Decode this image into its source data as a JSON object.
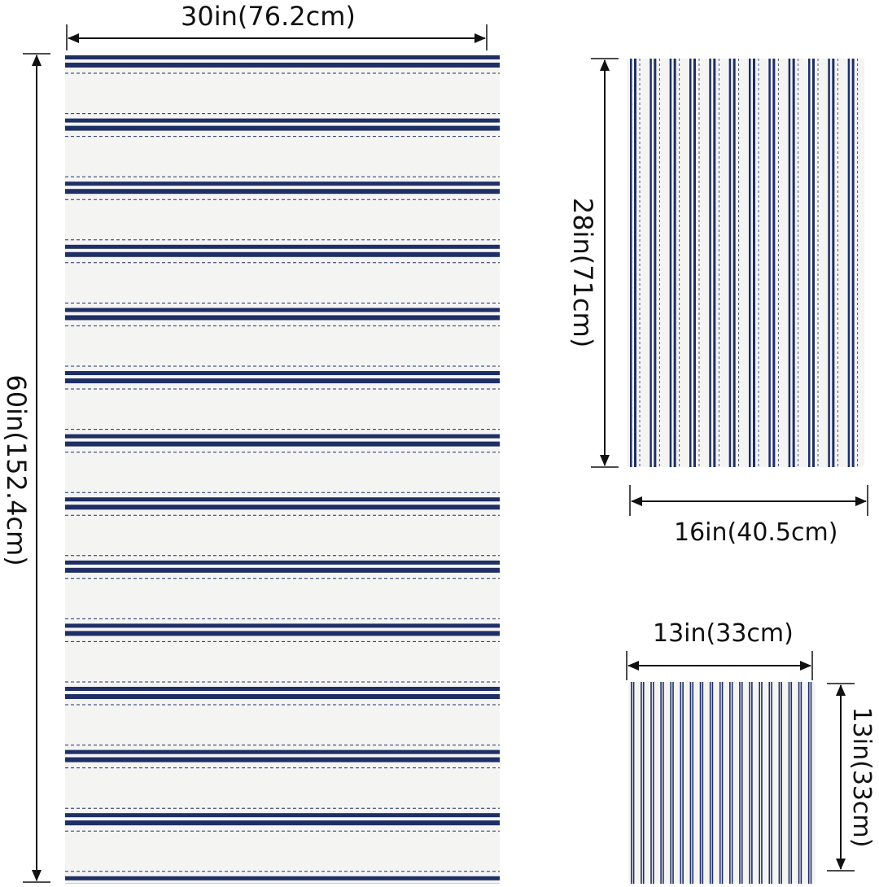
{
  "towels": {
    "bath": {
      "width_label": "30in(76.2cm)",
      "height_label": "60in(152.4cm)"
    },
    "hand": {
      "height_label": "28in(71cm)",
      "width_label": "16in(40.5cm)"
    },
    "washcloth": {
      "width_label": "13in(33cm)",
      "height_label": "13in(33cm)"
    }
  },
  "colors": {
    "navy": "#1f2f66",
    "fabric": "#f4f4f3",
    "arrow": "#111111"
  }
}
